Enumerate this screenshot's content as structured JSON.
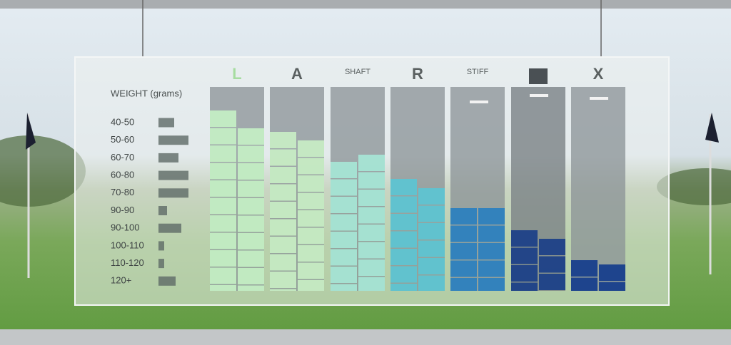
{
  "panel": {
    "weight_title": "WEIGHT (grams)",
    "weights": [
      "40-50",
      "50-60",
      "60-70",
      "60-80",
      "70-80",
      "90-90",
      "90-100",
      "100-110",
      "110-120",
      "120+"
    ],
    "columns": [
      {
        "label": "L",
        "color": "#c4f0c4"
      },
      {
        "label": "A",
        "color": "#c8eec4"
      },
      {
        "label": "SHAFT",
        "color": "#a6e6d6"
      },
      {
        "label": "R",
        "color": "#5cc4d2"
      },
      {
        "label": "STIFF",
        "color": "#2a7fbf"
      },
      {
        "label": "X",
        "color": "#133c8c"
      }
    ]
  }
}
